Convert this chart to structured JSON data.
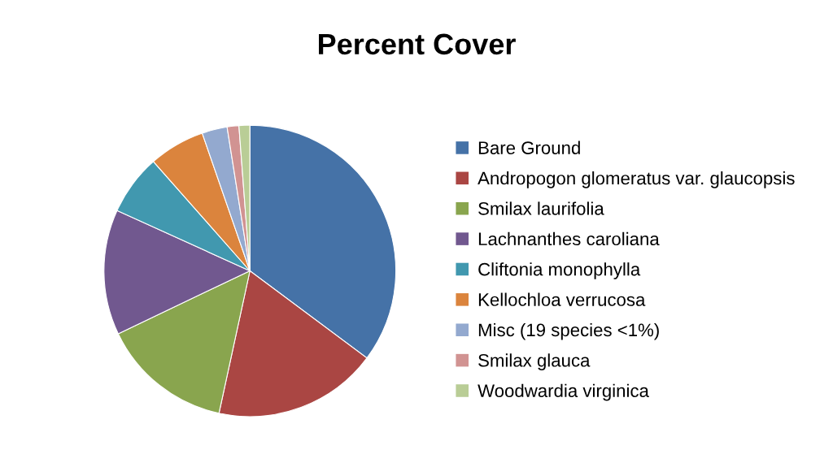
{
  "chart_data": {
    "type": "pie",
    "title": "Percent Cover",
    "categories": [
      "Bare Ground",
      "Andropogon glomeratus var. glaucopsis",
      "Smilax laurifolia",
      "Lachnanthes caroliana",
      "Cliftonia monophylla",
      "Kellochloa verrucosa",
      "Misc (19 species <1%)",
      "Smilax glauca",
      "Woodwardia virginica"
    ],
    "values": [
      35.2,
      18.2,
      14.5,
      13.9,
      6.7,
      6.2,
      2.8,
      1.3,
      1.2
    ],
    "colors": [
      "#4572a7",
      "#aa4643",
      "#89a54e",
      "#71588f",
      "#4198af",
      "#db843d",
      "#93a9cf",
      "#d19392",
      "#b9cd96"
    ],
    "legend": "right"
  }
}
